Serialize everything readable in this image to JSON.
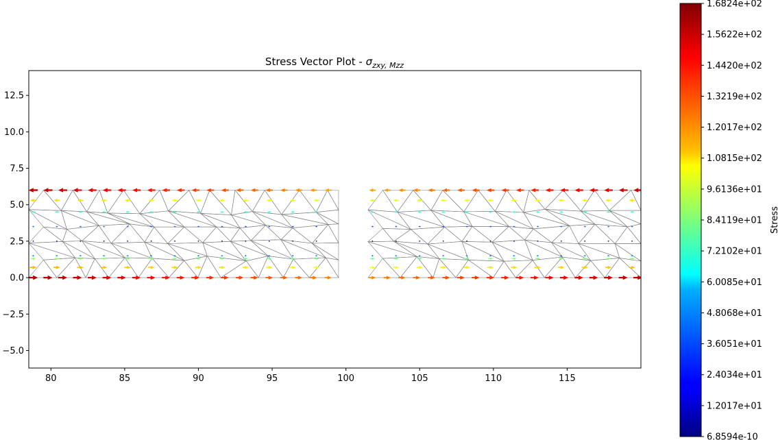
{
  "chart_data": {
    "type": "quiver",
    "title_main": "Stress Vector Plot - ",
    "title_sigma": "σ",
    "title_sub": "zxy, Mzz",
    "xlabel": "",
    "ylabel": "",
    "xlim": [
      78.5,
      120
    ],
    "ylim": [
      -6.2,
      14.2
    ],
    "x_ticks": [
      80,
      85,
      90,
      95,
      100,
      105,
      110,
      115
    ],
    "y_ticks": [
      -5.0,
      -2.5,
      0.0,
      2.5,
      5.0,
      7.5,
      10.0,
      12.5
    ],
    "x_tick_labels": [
      "80",
      "85",
      "90",
      "95",
      "100",
      "105",
      "110",
      "115"
    ],
    "y_tick_labels": [
      "−5.0",
      "−2.5",
      "0.0",
      "2.5",
      "5.0",
      "7.5",
      "10.0",
      "12.5"
    ],
    "grid": false,
    "segments": [
      {
        "x_range": [
          78.5,
          99.5
        ],
        "y_range": [
          0,
          6
        ]
      },
      {
        "x_range": [
          101.5,
          120
        ],
        "y_range": [
          0,
          6
        ]
      }
    ],
    "vector_rows": [
      {
        "y": 6.0,
        "dir": -1,
        "stress_left": 160,
        "stress_right": 120
      },
      {
        "y": 5.3,
        "dir": -1,
        "stress_left": 112,
        "stress_right": 100
      },
      {
        "y": 4.5,
        "dir": -1,
        "stress_left": 75,
        "stress_right": 65
      },
      {
        "y": 3.5,
        "dir": -1,
        "stress_left": 38,
        "stress_right": 30
      },
      {
        "y": 2.5,
        "dir": 0,
        "stress_left": 5,
        "stress_right": 5
      },
      {
        "y": 1.5,
        "dir": 1,
        "stress_left": 40,
        "stress_right": 35
      },
      {
        "y": 1.3,
        "dir": 1,
        "stress_left": 88,
        "stress_right": 80
      },
      {
        "y": 0.7,
        "dir": 1,
        "stress_left": 118,
        "stress_right": 105
      },
      {
        "y": 0.0,
        "dir": 1,
        "stress_left": 162,
        "stress_right": 125
      }
    ],
    "colorbar": {
      "label": "Stress",
      "colormap": "jet",
      "min": 6.8594e-10,
      "max": 168.24,
      "tick_labels": [
        "1.6824e+02",
        "1.5622e+02",
        "1.4420e+02",
        "1.3219e+02",
        "1.2017e+02",
        "1.0815e+02",
        "9.6136e+01",
        "8.4119e+01",
        "7.2102e+01",
        "6.0085e+01",
        "4.8068e+01",
        "3.6051e+01",
        "2.4034e+01",
        "1.2017e+01",
        "6.8594e-10"
      ]
    }
  }
}
